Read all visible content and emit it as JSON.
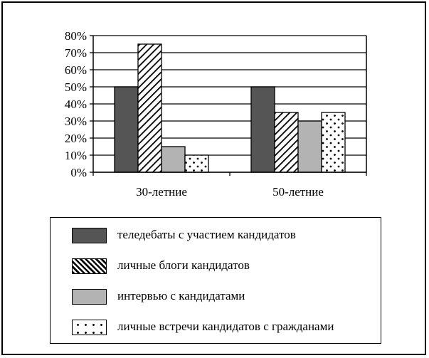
{
  "chart_data": {
    "type": "bar",
    "categories": [
      "30-летние",
      "50-летние"
    ],
    "series": [
      {
        "name": "теледебаты с участием кандидатов",
        "values": [
          50,
          50
        ],
        "pattern": "solid-dark",
        "color": "#555555"
      },
      {
        "name": "личные блоги кандидатов",
        "values": [
          75,
          35
        ],
        "pattern": "diagonal-hatch",
        "color": "#000000"
      },
      {
        "name": "интервью с кандидатами",
        "values": [
          15,
          30
        ],
        "pattern": "solid-light",
        "color": "#b3b3b3"
      },
      {
        "name": "личные встречи кандидатов с гражданами",
        "values": [
          10,
          35
        ],
        "pattern": "dots",
        "color": "#000000"
      }
    ],
    "y_ticks": [
      "0%",
      "10%",
      "20%",
      "30%",
      "40%",
      "50%",
      "60%",
      "70%",
      "80%"
    ],
    "ylim": [
      0,
      80
    ],
    "y_unit": "%",
    "grid": true,
    "legend_position": "bottom"
  }
}
